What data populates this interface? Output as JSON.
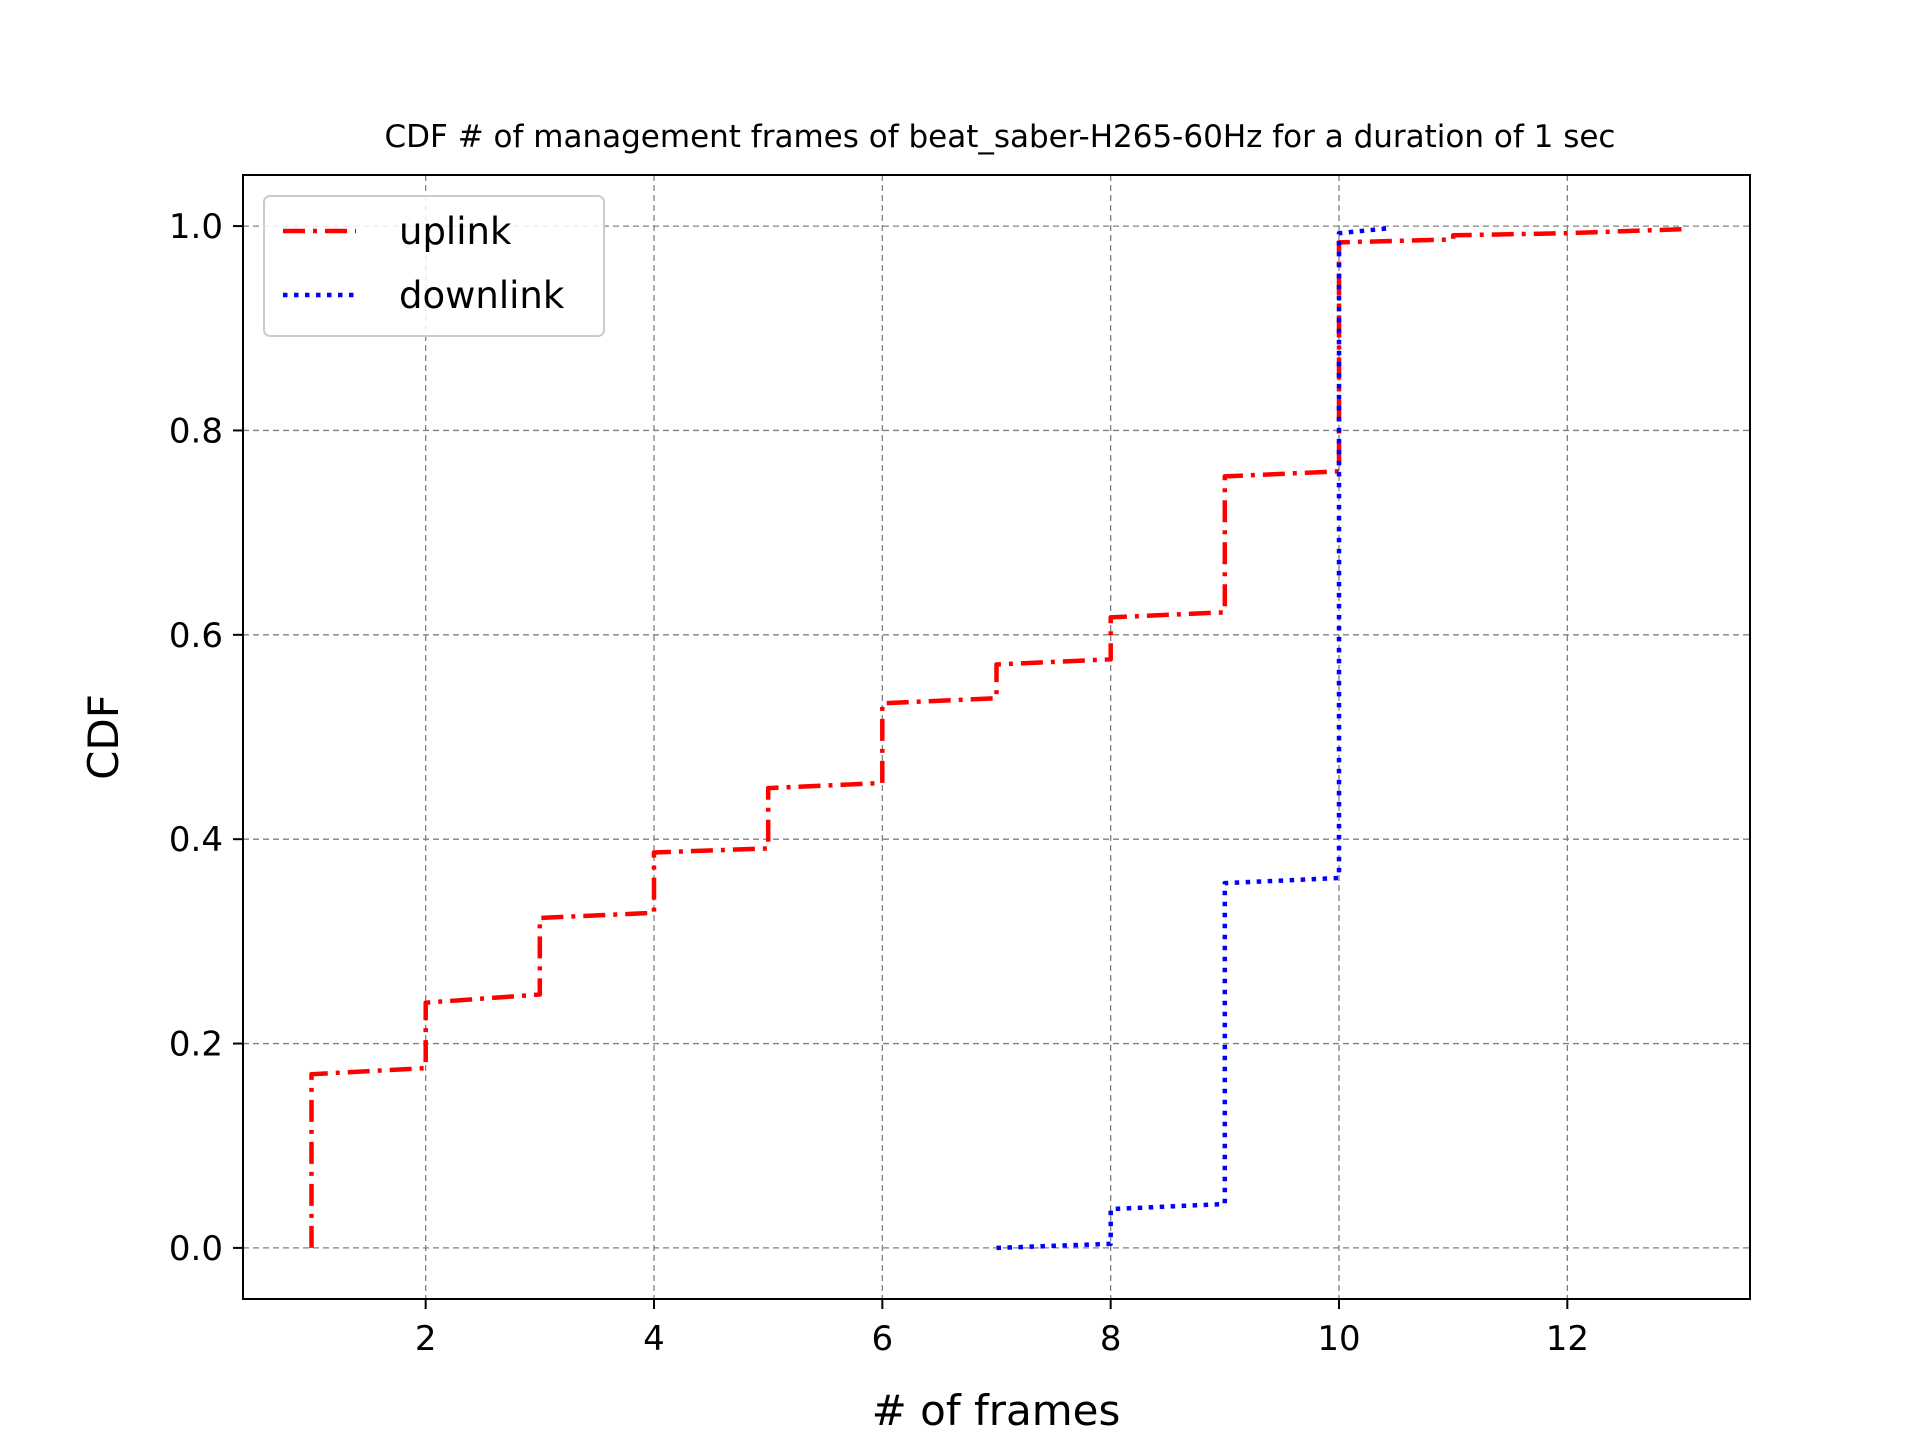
{
  "chart_data": {
    "type": "line",
    "title": "CDF # of management frames of beat_saber-H265-60Hz for a duration of 1 sec",
    "xlabel": "# of frames",
    "ylabel": "CDF",
    "xlim": [
      0.4,
      13.6
    ],
    "ylim": [
      -0.05,
      1.05
    ],
    "xticks": [
      2,
      4,
      6,
      8,
      10,
      12
    ],
    "yticks": [
      0.0,
      0.2,
      0.4,
      0.6,
      0.8,
      1.0
    ],
    "xtick_labels": [
      "2",
      "4",
      "6",
      "8",
      "10",
      "12"
    ],
    "ytick_labels": [
      "0.0",
      "0.2",
      "0.4",
      "0.6",
      "0.8",
      "1.0"
    ],
    "grid": true,
    "legend_position": "upper-left",
    "series": [
      {
        "name": "uplink",
        "color": "#ff0000",
        "style": "dashdot",
        "x": [
          1,
          1,
          2,
          2,
          3,
          3,
          4,
          4,
          5,
          5,
          6,
          6,
          7,
          7,
          8,
          8,
          9,
          9,
          10,
          10,
          11,
          11,
          12,
          13
        ],
        "y": [
          0.0,
          0.17,
          0.176,
          0.24,
          0.248,
          0.323,
          0.328,
          0.387,
          0.391,
          0.45,
          0.455,
          0.533,
          0.538,
          0.571,
          0.576,
          0.617,
          0.622,
          0.755,
          0.76,
          0.984,
          0.987,
          0.991,
          0.993,
          0.997
        ]
      },
      {
        "name": "downlink",
        "color": "#0000ff",
        "style": "dotted",
        "x": [
          7,
          8,
          8,
          9,
          9,
          10,
          10,
          10.45
        ],
        "y": [
          0.0,
          0.004,
          0.038,
          0.043,
          0.357,
          0.362,
          0.993,
          0.998
        ]
      }
    ]
  }
}
